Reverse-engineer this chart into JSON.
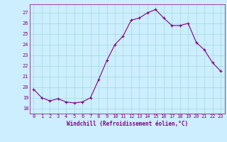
{
  "x": [
    0,
    1,
    2,
    3,
    4,
    5,
    6,
    7,
    8,
    9,
    10,
    11,
    12,
    13,
    14,
    15,
    16,
    17,
    18,
    19,
    20,
    21,
    22,
    23
  ],
  "y": [
    19.8,
    19.0,
    18.7,
    18.9,
    18.6,
    18.5,
    18.6,
    19.0,
    20.7,
    22.5,
    24.0,
    24.8,
    26.3,
    26.5,
    27.0,
    27.3,
    26.5,
    25.8,
    25.8,
    26.0,
    24.2,
    23.5,
    22.3,
    21.5
  ],
  "line_color": "#800080",
  "marker": "+",
  "marker_size": 3,
  "bg_color": "#cceeff",
  "grid_color": "#aadddd",
  "ylabel_ticks": [
    18,
    19,
    20,
    21,
    22,
    23,
    24,
    25,
    26,
    27
  ],
  "xlabel": "Windchill (Refroidissement éolien,°C)",
  "xlim": [
    -0.5,
    23.5
  ],
  "ylim": [
    17.5,
    27.8
  ],
  "xlabel_color": "#800080",
  "tick_color": "#800080",
  "axis_fontsize": 5.5,
  "tick_fontsize": 5.0
}
